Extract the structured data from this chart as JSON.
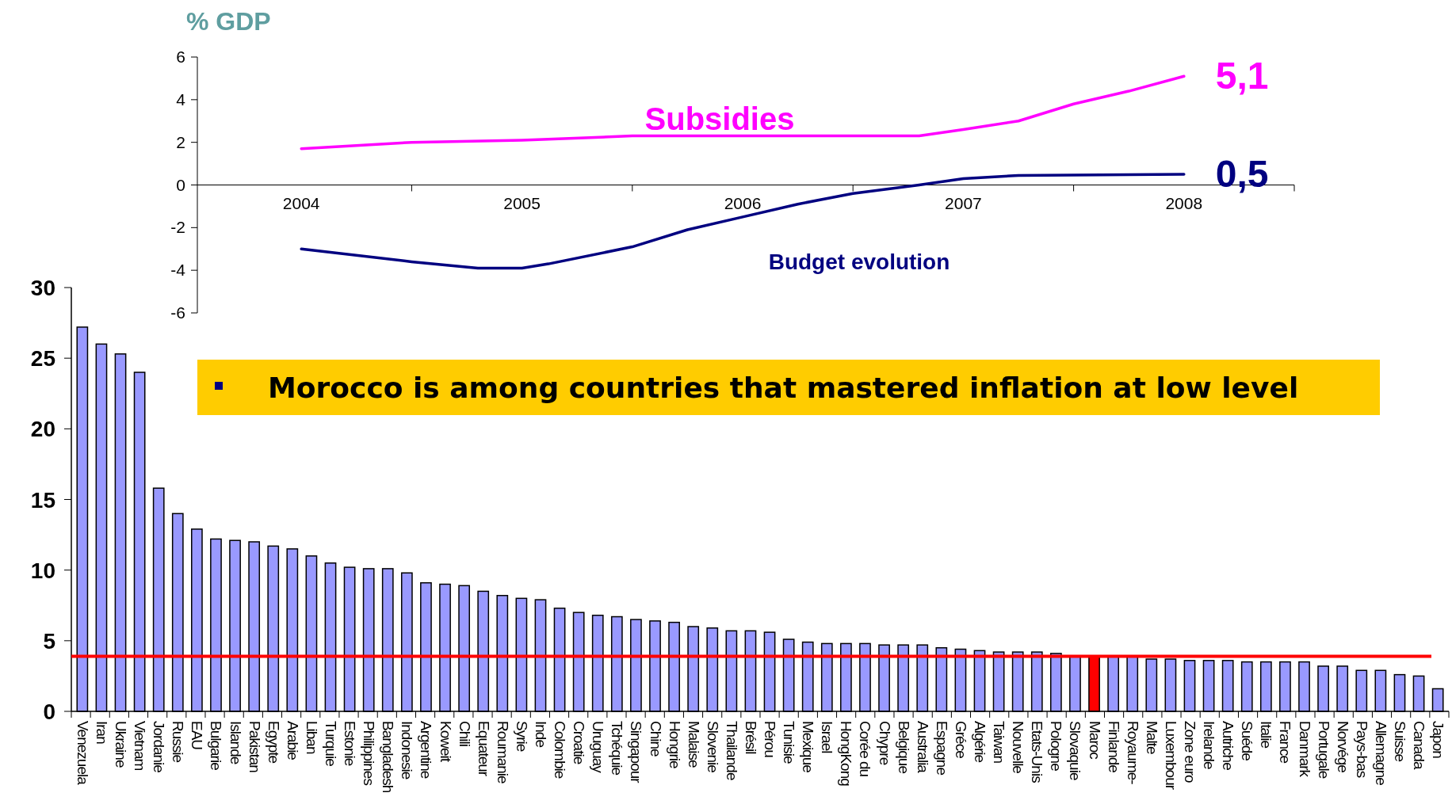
{
  "chart_data": [
    {
      "type": "line",
      "ylabel": "% GDP",
      "xlim": [
        2003.5,
        2008.5
      ],
      "xticks": [
        2004,
        {
          "value": 2004.5,
          "label": null
        },
        2005,
        {
          "value": 2005.5,
          "label": null
        },
        2006,
        {
          "value": 2006.5,
          "label": null
        },
        2007,
        {
          "value": 2007.5,
          "label": null
        },
        2008,
        {
          "value": 2008.5,
          "label": null
        }
      ],
      "ylim": [
        -6,
        6
      ],
      "yticks": [
        -6,
        -4,
        -2,
        0,
        2,
        4,
        6
      ],
      "grid": false,
      "marker": "none",
      "line_style": "solid",
      "series": [
        {
          "name": "Subsidies",
          "color": "#ff00ff",
          "x": [
            2004,
            2004.5,
            2005,
            2005.5,
            2006,
            2006.5,
            2006.8,
            2007,
            2007.25,
            2007.5,
            2007.75,
            2008
          ],
          "values": [
            1.7,
            2.0,
            2.1,
            2.3,
            2.3,
            2.3,
            2.3,
            2.6,
            3.0,
            3.8,
            4.4,
            5.1
          ],
          "value_labels": [
            null,
            null,
            null,
            null,
            null,
            null,
            null,
            null,
            null,
            null,
            null,
            "5,1"
          ]
        },
        {
          "name": "Budget evolution",
          "color": "#000080",
          "x": [
            2004,
            2004.5,
            2004.8,
            2005,
            2005.12,
            2005.5,
            2005.75,
            2006,
            2006.25,
            2006.5,
            2006.8,
            2007,
            2007.25,
            2008
          ],
          "values": [
            -3.0,
            -3.6,
            -3.9,
            -3.9,
            -3.7,
            -2.9,
            -2.1,
            -1.5,
            -0.9,
            -0.4,
            0,
            0.3,
            0.45,
            0.5
          ],
          "value_labels": [
            null,
            null,
            null,
            null,
            null,
            null,
            null,
            null,
            null,
            null,
            null,
            null,
            null,
            "0,5"
          ]
        }
      ]
    },
    {
      "type": "bar",
      "ylim": [
        0,
        30
      ],
      "yticks": [
        0,
        5,
        10,
        15,
        20,
        25,
        30
      ],
      "grid": false,
      "annotations": [
        "Morocco is among countries that mastered inflation at low level"
      ],
      "ref_lines": [
        {
          "axis": "y",
          "value": 3.9,
          "color": "#ff0000"
        }
      ],
      "categories": [
        "Venezuela",
        "Iran",
        "Ukraine",
        "Vietnam",
        "Jordanie",
        "Russie",
        "EAU",
        "Bulgarie",
        "Islande",
        "Pakistan",
        "Egypte",
        "Arabie",
        "Liban",
        "Turquie",
        "Estonie",
        "Philippines",
        "Bangladesh",
        "Indonesie",
        "Argentine",
        "Koweit",
        "Chili",
        "Equateur",
        "Roumanie",
        "Syrie",
        "Inde",
        "Colombie",
        "Croatie",
        "Uruguay",
        "Tchéquie",
        "Singapour",
        "Chine",
        "Hongrie",
        "Malaise",
        "Slovenie",
        "Thailande",
        "Brésil",
        "Pérou",
        "Tunisie",
        "Mexique",
        "Israel",
        "HongKong",
        "Corée du",
        "Chypre",
        "Belgique",
        "Australia",
        "Espagne",
        "Gréce",
        "Algérie",
        "Taiwan",
        "Nouvelle",
        "Etats-Unis",
        "Pologne",
        "Slovaquie",
        "Maroc",
        "Finlande",
        "Royaume-",
        "Malte",
        "Luxembour",
        "Zone euro",
        "Irelande",
        "Autriche",
        "Suéde",
        "Italie",
        "France",
        "Danmark",
        "Portugale",
        "Norvége",
        "Pays-bas",
        "Allemagne",
        "Suisse",
        "Canada",
        "Japon"
      ],
      "values": [
        27.2,
        26,
        25.3,
        24,
        15.8,
        14,
        12.9,
        12.2,
        12.1,
        12.0,
        11.7,
        11.5,
        11.0,
        10.5,
        10.2,
        10.1,
        10.1,
        9.8,
        9.1,
        9.0,
        8.9,
        8.5,
        8.2,
        8.0,
        7.9,
        7.3,
        7.0,
        6.8,
        6.7,
        6.5,
        6.4,
        6.3,
        6.0,
        5.9,
        5.7,
        5.7,
        5.6,
        5.1,
        4.9,
        4.8,
        4.8,
        4.8,
        4.7,
        4.7,
        4.7,
        4.5,
        4.4,
        4.3,
        4.2,
        4.2,
        4.2,
        4.1,
        3.9,
        3.9,
        3.9,
        3.9,
        3.7,
        3.7,
        3.6,
        3.6,
        3.6,
        3.5,
        3.5,
        3.5,
        3.5,
        3.2,
        3.2,
        2.9,
        2.9,
        2.6,
        2.5,
        1.6
      ],
      "colors": [
        "#9999ff",
        "#9999ff",
        "#9999ff",
        "#9999ff",
        "#9999ff",
        "#9999ff",
        "#9999ff",
        "#9999ff",
        "#9999ff",
        "#9999ff",
        "#9999ff",
        "#9999ff",
        "#9999ff",
        "#9999ff",
        "#9999ff",
        "#9999ff",
        "#9999ff",
        "#9999ff",
        "#9999ff",
        "#9999ff",
        "#9999ff",
        "#9999ff",
        "#9999ff",
        "#9999ff",
        "#9999ff",
        "#9999ff",
        "#9999ff",
        "#9999ff",
        "#9999ff",
        "#9999ff",
        "#9999ff",
        "#9999ff",
        "#9999ff",
        "#9999ff",
        "#9999ff",
        "#9999ff",
        "#9999ff",
        "#9999ff",
        "#9999ff",
        "#9999ff",
        "#9999ff",
        "#9999ff",
        "#9999ff",
        "#9999ff",
        "#9999ff",
        "#9999ff",
        "#9999ff",
        "#9999ff",
        "#9999ff",
        "#9999ff",
        "#9999ff",
        "#9999ff",
        "#9999ff",
        "#ff0000",
        "#9999ff",
        "#9999ff",
        "#9999ff",
        "#9999ff",
        "#9999ff",
        "#9999ff",
        "#9999ff",
        "#9999ff",
        "#9999ff",
        "#9999ff",
        "#9999ff",
        "#9999ff",
        "#9999ff",
        "#9999ff",
        "#9999ff",
        "#9999ff",
        "#9999ff",
        "#9999ff"
      ]
    }
  ]
}
